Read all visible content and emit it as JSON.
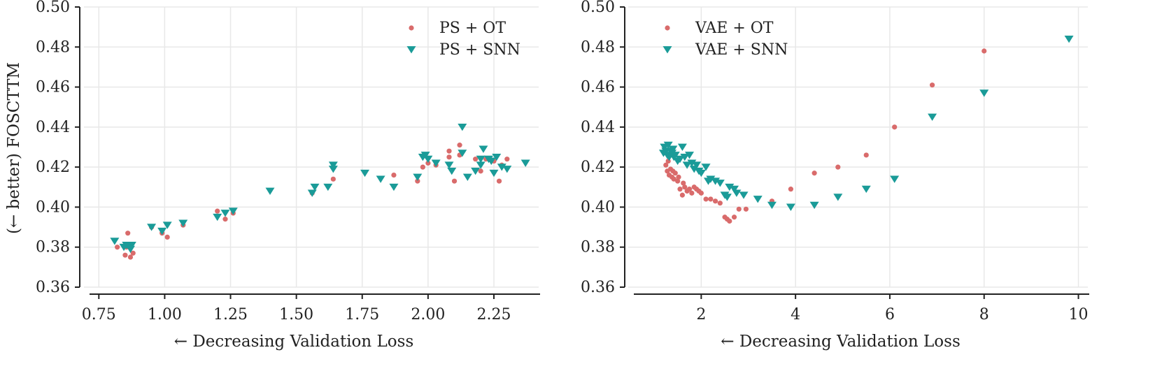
{
  "figure": {
    "shared_ylabel": "(← better) FOSCTTM"
  },
  "colors": {
    "ot": "#d96b6b",
    "snn": "#1a9b98",
    "grid": "#e8e8e8",
    "axis": "#222222"
  },
  "chart_data": [
    {
      "type": "scatter",
      "xlabel": "← Decreasing Validation Loss",
      "ylabel": "(← better) FOSCTTM",
      "xlim": [
        0.72,
        2.42
      ],
      "ylim": [
        0.36,
        0.5
      ],
      "xticks": [
        "0.75",
        "1.00",
        "1.25",
        "1.50",
        "1.75",
        "2.00",
        "2.25"
      ],
      "yticks": [
        "0.36",
        "0.38",
        "0.40",
        "0.42",
        "0.44",
        "0.46",
        "0.48",
        "0.50"
      ],
      "grid": true,
      "legend_position": "top-right",
      "series": [
        {
          "name": "PS + OT",
          "marker": "circle",
          "points": [
            [
              0.82,
              0.38
            ],
            [
              0.85,
              0.376
            ],
            [
              0.86,
              0.387
            ],
            [
              0.87,
              0.375
            ],
            [
              0.88,
              0.377
            ],
            [
              0.855,
              0.38
            ],
            [
              0.95,
              0.39
            ],
            [
              0.99,
              0.387
            ],
            [
              1.01,
              0.385
            ],
            [
              1.07,
              0.391
            ],
            [
              1.2,
              0.398
            ],
            [
              1.23,
              0.394
            ],
            [
              1.26,
              0.397
            ],
            [
              1.56,
              0.407
            ],
            [
              1.64,
              0.414
            ],
            [
              1.87,
              0.416
            ],
            [
              1.96,
              0.413
            ],
            [
              1.98,
              0.42
            ],
            [
              2.0,
              0.422
            ],
            [
              2.03,
              0.421
            ],
            [
              2.08,
              0.425
            ],
            [
              2.08,
              0.428
            ],
            [
              2.1,
              0.413
            ],
            [
              2.12,
              0.426
            ],
            [
              2.12,
              0.431
            ],
            [
              2.18,
              0.424
            ],
            [
              2.2,
              0.418
            ],
            [
              2.22,
              0.424
            ],
            [
              2.25,
              0.423
            ],
            [
              2.27,
              0.413
            ],
            [
              2.28,
              0.421
            ],
            [
              2.3,
              0.424
            ]
          ]
        },
        {
          "name": "PS + SNN",
          "marker": "triangle-down",
          "points": [
            [
              0.81,
              0.383
            ],
            [
              0.845,
              0.38
            ],
            [
              0.855,
              0.381
            ],
            [
              0.86,
              0.381
            ],
            [
              0.87,
              0.379
            ],
            [
              0.875,
              0.381
            ],
            [
              0.95,
              0.39
            ],
            [
              0.99,
              0.388
            ],
            [
              1.01,
              0.391
            ],
            [
              1.07,
              0.392
            ],
            [
              1.2,
              0.395
            ],
            [
              1.23,
              0.397
            ],
            [
              1.26,
              0.398
            ],
            [
              1.4,
              0.408
            ],
            [
              1.56,
              0.407
            ],
            [
              1.57,
              0.41
            ],
            [
              1.62,
              0.41
            ],
            [
              1.64,
              0.419
            ],
            [
              1.64,
              0.421
            ],
            [
              1.76,
              0.417
            ],
            [
              1.82,
              0.414
            ],
            [
              1.87,
              0.41
            ],
            [
              1.96,
              0.415
            ],
            [
              1.98,
              0.425
            ],
            [
              1.99,
              0.426
            ],
            [
              2.0,
              0.424
            ],
            [
              2.03,
              0.422
            ],
            [
              2.08,
              0.421
            ],
            [
              2.09,
              0.418
            ],
            [
              2.13,
              0.44
            ],
            [
              2.13,
              0.427
            ],
            [
              2.15,
              0.415
            ],
            [
              2.18,
              0.418
            ],
            [
              2.2,
              0.421
            ],
            [
              2.2,
              0.424
            ],
            [
              2.21,
              0.429
            ],
            [
              2.23,
              0.424
            ],
            [
              2.24,
              0.423
            ],
            [
              2.25,
              0.417
            ],
            [
              2.26,
              0.425
            ],
            [
              2.28,
              0.42
            ],
            [
              2.3,
              0.419
            ],
            [
              2.37,
              0.422
            ]
          ]
        }
      ]
    },
    {
      "type": "scatter",
      "xlabel": "← Decreasing Validation Loss",
      "ylabel": "",
      "xlim": [
        0.6,
        10.2
      ],
      "ylim": [
        0.36,
        0.5
      ],
      "xticks": [
        "2",
        "4",
        "6",
        "8",
        "10"
      ],
      "yticks": [
        "0.36",
        "0.38",
        "0.40",
        "0.42",
        "0.44",
        "0.46",
        "0.48",
        "0.50"
      ],
      "grid": true,
      "legend_position": "top-left",
      "series": [
        {
          "name": "VAE + OT",
          "marker": "circle",
          "points": [
            [
              1.25,
              0.421
            ],
            [
              1.28,
              0.418
            ],
            [
              1.3,
              0.423
            ],
            [
              1.32,
              0.416
            ],
            [
              1.35,
              0.419
            ],
            [
              1.38,
              0.415
            ],
            [
              1.4,
              0.418
            ],
            [
              1.42,
              0.414
            ],
            [
              1.45,
              0.417
            ],
            [
              1.5,
              0.413
            ],
            [
              1.52,
              0.415
            ],
            [
              1.55,
              0.409
            ],
            [
              1.6,
              0.406
            ],
            [
              1.62,
              0.412
            ],
            [
              1.65,
              0.41
            ],
            [
              1.7,
              0.408
            ],
            [
              1.75,
              0.409
            ],
            [
              1.8,
              0.407
            ],
            [
              1.85,
              0.41
            ],
            [
              1.9,
              0.409
            ],
            [
              1.95,
              0.408
            ],
            [
              2.0,
              0.407
            ],
            [
              2.1,
              0.404
            ],
            [
              2.2,
              0.404
            ],
            [
              2.3,
              0.403
            ],
            [
              2.4,
              0.402
            ],
            [
              2.5,
              0.395
            ],
            [
              2.55,
              0.394
            ],
            [
              2.6,
              0.393
            ],
            [
              2.7,
              0.395
            ],
            [
              2.8,
              0.399
            ],
            [
              2.95,
              0.399
            ],
            [
              3.5,
              0.403
            ],
            [
              3.9,
              0.409
            ],
            [
              4.4,
              0.417
            ],
            [
              4.9,
              0.42
            ],
            [
              5.5,
              0.426
            ],
            [
              6.1,
              0.44
            ],
            [
              6.9,
              0.461
            ],
            [
              8.0,
              0.478
            ]
          ]
        },
        {
          "name": "VAE + SNN",
          "marker": "triangle-down",
          "points": [
            [
              1.2,
              0.427
            ],
            [
              1.22,
              0.43
            ],
            [
              1.25,
              0.428
            ],
            [
              1.28,
              0.426
            ],
            [
              1.3,
              0.431
            ],
            [
              1.32,
              0.425
            ],
            [
              1.35,
              0.428
            ],
            [
              1.38,
              0.427
            ],
            [
              1.4,
              0.429
            ],
            [
              1.42,
              0.425
            ],
            [
              1.45,
              0.426
            ],
            [
              1.5,
              0.423
            ],
            [
              1.55,
              0.424
            ],
            [
              1.6,
              0.43
            ],
            [
              1.65,
              0.425
            ],
            [
              1.7,
              0.421
            ],
            [
              1.75,
              0.426
            ],
            [
              1.8,
              0.422
            ],
            [
              1.85,
              0.419
            ],
            [
              1.9,
              0.421
            ],
            [
              1.95,
              0.418
            ],
            [
              2.0,
              0.417
            ],
            [
              2.1,
              0.42
            ],
            [
              2.15,
              0.413
            ],
            [
              2.2,
              0.414
            ],
            [
              2.3,
              0.413
            ],
            [
              2.4,
              0.412
            ],
            [
              2.5,
              0.406
            ],
            [
              2.55,
              0.405
            ],
            [
              2.6,
              0.41
            ],
            [
              2.7,
              0.409
            ],
            [
              2.75,
              0.407
            ],
            [
              2.9,
              0.406
            ],
            [
              3.2,
              0.404
            ],
            [
              3.5,
              0.401
            ],
            [
              3.9,
              0.4
            ],
            [
              4.4,
              0.401
            ],
            [
              4.9,
              0.405
            ],
            [
              5.5,
              0.409
            ],
            [
              6.1,
              0.414
            ],
            [
              6.9,
              0.445
            ],
            [
              8.0,
              0.457
            ],
            [
              9.8,
              0.484
            ]
          ]
        }
      ]
    }
  ]
}
